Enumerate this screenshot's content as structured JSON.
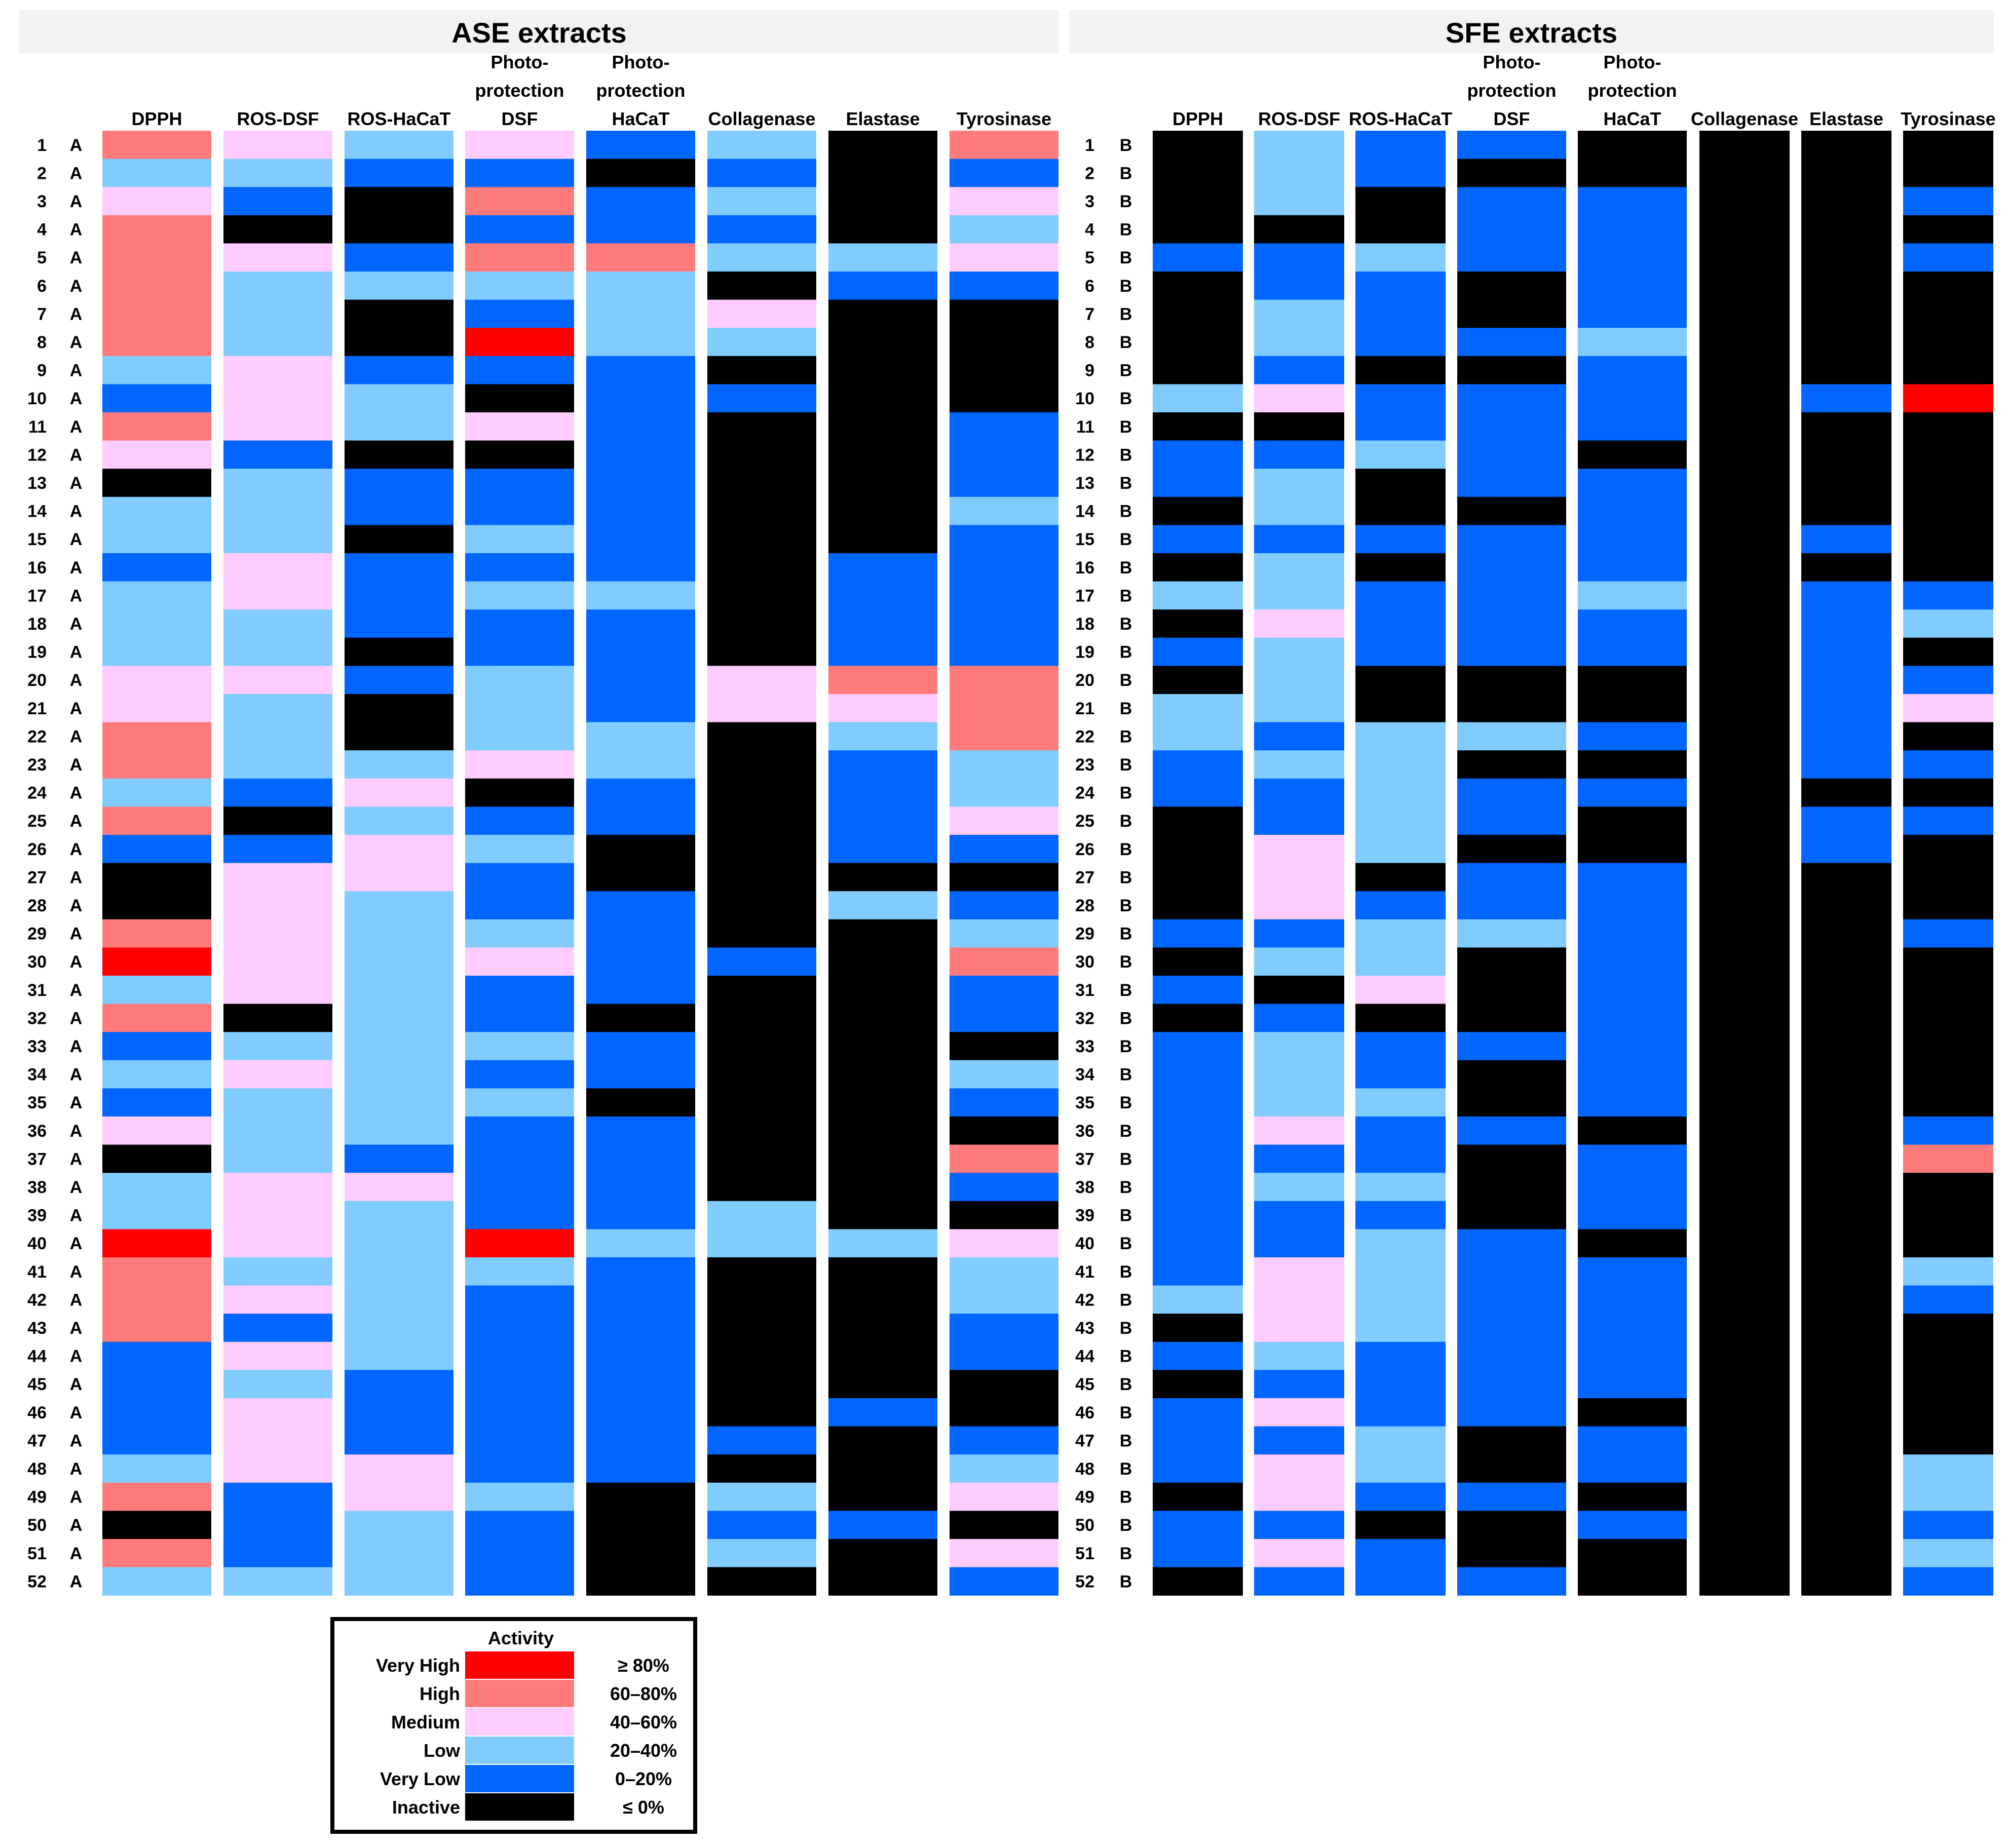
{
  "palette": {
    "VH": "#ff0000",
    "H": "#ff7b7b",
    "M": "#ffccff",
    "L": "#80ccff",
    "VL": "#0066ff",
    "I": "#000000"
  },
  "legend": {
    "title": "Activity",
    "items": [
      {
        "key": "VH",
        "label": "Very High",
        "range": "≥ 80%"
      },
      {
        "key": "H",
        "label": "High",
        "range": "60–80%"
      },
      {
        "key": "M",
        "label": "Medium",
        "range": "40–60%"
      },
      {
        "key": "L",
        "label": "Low",
        "range": "20–40%"
      },
      {
        "key": "VL",
        "label": "Very Low",
        "range": "0–20%"
      },
      {
        "key": "I",
        "label": "Inactive",
        "range": "≤ 0%"
      }
    ]
  },
  "chart_data": [
    {
      "type": "heatmap",
      "title": "ASE extracts",
      "row_suffix": "A",
      "rows": [
        "1",
        "2",
        "3",
        "4",
        "5",
        "6",
        "7",
        "8",
        "9",
        "10",
        "11",
        "12",
        "13",
        "14",
        "15",
        "16",
        "17",
        "18",
        "19",
        "20",
        "21",
        "22",
        "23",
        "24",
        "25",
        "26",
        "27",
        "28",
        "29",
        "30",
        "31",
        "32",
        "33",
        "34",
        "35",
        "36",
        "37",
        "38",
        "39",
        "40",
        "41",
        "42",
        "43",
        "44",
        "45",
        "46",
        "47",
        "48",
        "49",
        "50",
        "51",
        "52"
      ],
      "columns": [
        {
          "label": [
            "DPPH"
          ],
          "values": [
            "H",
            "L",
            "M",
            "H",
            "H",
            "H",
            "H",
            "H",
            "L",
            "VL",
            "H",
            "M",
            "I",
            "L",
            "L",
            "VL",
            "L",
            "L",
            "L",
            "M",
            "M",
            "H",
            "H",
            "L",
            "H",
            "VL",
            "I",
            "I",
            "H",
            "VH",
            "L",
            "H",
            "VL",
            "L",
            "VL",
            "M",
            "I",
            "L",
            "L",
            "VH",
            "H",
            "H",
            "H",
            "VL",
            "VL",
            "VL",
            "VL",
            "L",
            "H",
            "I",
            "H",
            "L"
          ]
        },
        {
          "label": [
            "ROS-DSF"
          ],
          "values": [
            "M",
            "L",
            "VL",
            "I",
            "M",
            "L",
            "L",
            "L",
            "M",
            "M",
            "M",
            "VL",
            "L",
            "L",
            "L",
            "M",
            "M",
            "L",
            "L",
            "M",
            "L",
            "L",
            "L",
            "VL",
            "I",
            "VL",
            "M",
            "M",
            "M",
            "M",
            "M",
            "I",
            "L",
            "M",
            "L",
            "L",
            "L",
            "M",
            "M",
            "M",
            "L",
            "M",
            "VL",
            "M",
            "L",
            "M",
            "M",
            "M",
            "VL",
            "VL",
            "VL",
            "L"
          ]
        },
        {
          "label": [
            "ROS-HaCaT"
          ],
          "values": [
            "L",
            "VL",
            "I",
            "I",
            "VL",
            "L",
            "I",
            "I",
            "VL",
            "L",
            "L",
            "I",
            "VL",
            "VL",
            "I",
            "VL",
            "VL",
            "VL",
            "I",
            "VL",
            "I",
            "I",
            "L",
            "M",
            "L",
            "M",
            "M",
            "L",
            "L",
            "L",
            "L",
            "L",
            "L",
            "L",
            "L",
            "L",
            "VL",
            "M",
            "L",
            "L",
            "L",
            "L",
            "L",
            "L",
            "VL",
            "VL",
            "VL",
            "M",
            "M",
            "L",
            "L",
            "L"
          ]
        },
        {
          "label": [
            "Photo-",
            "protection",
            "DSF"
          ],
          "values": [
            "M",
            "VL",
            "H",
            "VL",
            "H",
            "L",
            "VL",
            "VH",
            "VL",
            "I",
            "M",
            "I",
            "VL",
            "VL",
            "L",
            "VL",
            "L",
            "VL",
            "VL",
            "L",
            "L",
            "L",
            "M",
            "I",
            "VL",
            "L",
            "VL",
            "VL",
            "L",
            "M",
            "VL",
            "VL",
            "L",
            "VL",
            "L",
            "VL",
            "VL",
            "VL",
            "VL",
            "VH",
            "L",
            "VL",
            "VL",
            "VL",
            "VL",
            "VL",
            "VL",
            "VL",
            "L",
            "VL",
            "VL",
            "VL"
          ]
        },
        {
          "label": [
            "Photo-",
            "protection",
            "HaCaT"
          ],
          "values": [
            "VL",
            "I",
            "VL",
            "VL",
            "H",
            "L",
            "L",
            "L",
            "VL",
            "VL",
            "VL",
            "VL",
            "VL",
            "VL",
            "VL",
            "VL",
            "L",
            "VL",
            "VL",
            "VL",
            "VL",
            "L",
            "L",
            "VL",
            "VL",
            "I",
            "I",
            "VL",
            "VL",
            "VL",
            "VL",
            "I",
            "VL",
            "VL",
            "I",
            "VL",
            "VL",
            "VL",
            "VL",
            "L",
            "VL",
            "VL",
            "VL",
            "VL",
            "VL",
            "VL",
            "VL",
            "VL",
            "I",
            "I",
            "I",
            "I"
          ]
        },
        {
          "label": [
            "Collagenase"
          ],
          "values": [
            "L",
            "VL",
            "L",
            "VL",
            "L",
            "I",
            "M",
            "L",
            "I",
            "VL",
            "I",
            "I",
            "I",
            "I",
            "I",
            "I",
            "I",
            "I",
            "I",
            "M",
            "M",
            "I",
            "I",
            "I",
            "I",
            "I",
            "I",
            "I",
            "I",
            "VL",
            "I",
            "I",
            "I",
            "I",
            "I",
            "I",
            "I",
            "I",
            "L",
            "L",
            "I",
            "I",
            "I",
            "I",
            "I",
            "I",
            "VL",
            "I",
            "L",
            "VL",
            "L",
            "I"
          ]
        },
        {
          "label": [
            "Elastase"
          ],
          "values": [
            "I",
            "I",
            "I",
            "I",
            "L",
            "VL",
            "I",
            "I",
            "I",
            "I",
            "I",
            "I",
            "I",
            "I",
            "I",
            "VL",
            "VL",
            "VL",
            "VL",
            "H",
            "M",
            "L",
            "VL",
            "VL",
            "VL",
            "VL",
            "I",
            "L",
            "I",
            "I",
            "I",
            "I",
            "I",
            "I",
            "I",
            "I",
            "I",
            "I",
            "I",
            "L",
            "I",
            "I",
            "I",
            "I",
            "I",
            "VL",
            "I",
            "I",
            "I",
            "VL",
            "I",
            "I"
          ]
        },
        {
          "label": [
            "Tyrosinase"
          ],
          "values": [
            "H",
            "VL",
            "M",
            "L",
            "M",
            "VL",
            "I",
            "I",
            "I",
            "I",
            "VL",
            "VL",
            "VL",
            "L",
            "VL",
            "VL",
            "VL",
            "VL",
            "VL",
            "H",
            "H",
            "H",
            "L",
            "L",
            "M",
            "VL",
            "I",
            "VL",
            "L",
            "H",
            "VL",
            "VL",
            "I",
            "L",
            "VL",
            "I",
            "H",
            "VL",
            "I",
            "M",
            "L",
            "L",
            "VL",
            "VL",
            "I",
            "I",
            "VL",
            "L",
            "M",
            "I",
            "M",
            "VL"
          ]
        }
      ]
    },
    {
      "type": "heatmap",
      "title": "SFE extracts",
      "row_suffix": "B",
      "rows": [
        "1",
        "2",
        "3",
        "4",
        "5",
        "6",
        "7",
        "8",
        "9",
        "10",
        "11",
        "12",
        "13",
        "14",
        "15",
        "16",
        "17",
        "18",
        "19",
        "20",
        "21",
        "22",
        "23",
        "24",
        "25",
        "26",
        "27",
        "28",
        "29",
        "30",
        "31",
        "32",
        "33",
        "34",
        "35",
        "36",
        "37",
        "38",
        "39",
        "40",
        "41",
        "42",
        "43",
        "44",
        "45",
        "46",
        "47",
        "48",
        "49",
        "50",
        "51",
        "52"
      ],
      "columns": [
        {
          "label": [
            "DPPH"
          ],
          "values": [
            "I",
            "I",
            "I",
            "I",
            "VL",
            "I",
            "I",
            "I",
            "I",
            "L",
            "I",
            "VL",
            "VL",
            "I",
            "VL",
            "I",
            "L",
            "I",
            "VL",
            "I",
            "L",
            "L",
            "VL",
            "VL",
            "I",
            "I",
            "I",
            "I",
            "VL",
            "I",
            "VL",
            "I",
            "VL",
            "VL",
            "VL",
            "VL",
            "VL",
            "VL",
            "VL",
            "VL",
            "VL",
            "L",
            "I",
            "VL",
            "I",
            "VL",
            "VL",
            "VL",
            "I",
            "VL",
            "VL",
            "I"
          ]
        },
        {
          "label": [
            "ROS-DSF"
          ],
          "values": [
            "L",
            "L",
            "L",
            "I",
            "VL",
            "VL",
            "L",
            "L",
            "VL",
            "M",
            "I",
            "VL",
            "L",
            "L",
            "VL",
            "L",
            "L",
            "M",
            "L",
            "L",
            "L",
            "VL",
            "L",
            "VL",
            "VL",
            "M",
            "M",
            "M",
            "VL",
            "L",
            "I",
            "VL",
            "L",
            "L",
            "L",
            "M",
            "VL",
            "L",
            "VL",
            "VL",
            "M",
            "M",
            "M",
            "L",
            "VL",
            "M",
            "VL",
            "M",
            "M",
            "VL",
            "M",
            "VL"
          ]
        },
        {
          "label": [
            "ROS-HaCaT"
          ],
          "values": [
            "VL",
            "VL",
            "I",
            "I",
            "L",
            "VL",
            "VL",
            "VL",
            "I",
            "VL",
            "VL",
            "L",
            "I",
            "I",
            "VL",
            "I",
            "VL",
            "VL",
            "VL",
            "I",
            "I",
            "L",
            "L",
            "L",
            "L",
            "L",
            "I",
            "VL",
            "L",
            "L",
            "M",
            "I",
            "VL",
            "VL",
            "L",
            "VL",
            "VL",
            "L",
            "VL",
            "L",
            "L",
            "L",
            "L",
            "VL",
            "VL",
            "VL",
            "L",
            "L",
            "VL",
            "I",
            "VL",
            "VL"
          ]
        },
        {
          "label": [
            "Photo-",
            "protection",
            "DSF"
          ],
          "values": [
            "VL",
            "I",
            "VL",
            "VL",
            "VL",
            "I",
            "I",
            "VL",
            "I",
            "VL",
            "VL",
            "VL",
            "VL",
            "I",
            "VL",
            "VL",
            "VL",
            "VL",
            "VL",
            "I",
            "I",
            "L",
            "I",
            "VL",
            "VL",
            "I",
            "VL",
            "VL",
            "L",
            "I",
            "I",
            "I",
            "VL",
            "I",
            "I",
            "VL",
            "I",
            "I",
            "I",
            "VL",
            "VL",
            "VL",
            "VL",
            "VL",
            "VL",
            "VL",
            "I",
            "I",
            "VL",
            "I",
            "I",
            "VL"
          ]
        },
        {
          "label": [
            "Photo-",
            "protection",
            "HaCaT"
          ],
          "values": [
            "I",
            "I",
            "VL",
            "VL",
            "VL",
            "VL",
            "VL",
            "L",
            "VL",
            "VL",
            "VL",
            "I",
            "VL",
            "VL",
            "VL",
            "VL",
            "L",
            "VL",
            "VL",
            "I",
            "I",
            "VL",
            "I",
            "VL",
            "I",
            "I",
            "VL",
            "VL",
            "VL",
            "VL",
            "VL",
            "VL",
            "VL",
            "VL",
            "VL",
            "I",
            "VL",
            "VL",
            "VL",
            "I",
            "VL",
            "VL",
            "VL",
            "VL",
            "VL",
            "I",
            "VL",
            "VL",
            "I",
            "VL",
            "I",
            "I"
          ]
        },
        {
          "label": [
            "Collagenase"
          ],
          "values": [
            "I",
            "I",
            "I",
            "I",
            "I",
            "I",
            "I",
            "I",
            "I",
            "I",
            "I",
            "I",
            "I",
            "I",
            "I",
            "I",
            "I",
            "I",
            "I",
            "I",
            "I",
            "I",
            "I",
            "I",
            "I",
            "I",
            "I",
            "I",
            "I",
            "I",
            "I",
            "I",
            "I",
            "I",
            "I",
            "I",
            "I",
            "I",
            "I",
            "I",
            "I",
            "I",
            "I",
            "I",
            "I",
            "I",
            "I",
            "I",
            "I",
            "I",
            "I",
            "I"
          ]
        },
        {
          "label": [
            "Elastase"
          ],
          "values": [
            "I",
            "I",
            "I",
            "I",
            "I",
            "I",
            "I",
            "I",
            "I",
            "VL",
            "I",
            "I",
            "I",
            "I",
            "VL",
            "I",
            "VL",
            "VL",
            "VL",
            "VL",
            "VL",
            "VL",
            "VL",
            "I",
            "VL",
            "VL",
            "I",
            "I",
            "I",
            "I",
            "I",
            "I",
            "I",
            "I",
            "I",
            "I",
            "I",
            "I",
            "I",
            "I",
            "I",
            "I",
            "I",
            "I",
            "I",
            "I",
            "I",
            "I",
            "I",
            "I",
            "I",
            "I"
          ]
        },
        {
          "label": [
            "Tyrosinase"
          ],
          "values": [
            "I",
            "I",
            "VL",
            "I",
            "VL",
            "I",
            "I",
            "I",
            "I",
            "VH",
            "I",
            "I",
            "I",
            "I",
            "I",
            "I",
            "VL",
            "L",
            "I",
            "VL",
            "M",
            "I",
            "VL",
            "I",
            "VL",
            "I",
            "I",
            "I",
            "VL",
            "I",
            "I",
            "I",
            "I",
            "I",
            "I",
            "VL",
            "H",
            "I",
            "I",
            "I",
            "L",
            "VL",
            "I",
            "I",
            "I",
            "I",
            "I",
            "L",
            "L",
            "VL",
            "L",
            "VL"
          ]
        }
      ]
    }
  ]
}
